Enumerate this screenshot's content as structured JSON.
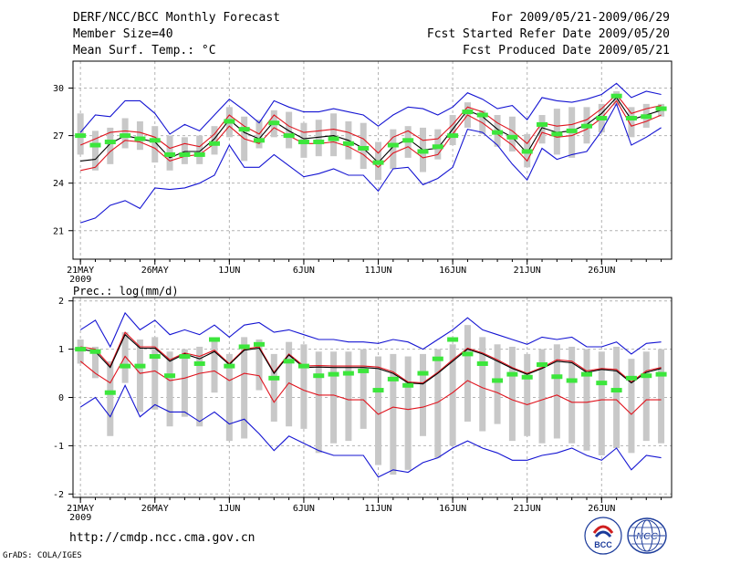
{
  "header": {
    "title": "DERF/NCC/BCC Monthly Forecast",
    "member_size": "Member Size=40",
    "variable": "Mean Surf. Temp.: °C",
    "period": "For 2009/05/21-2009/06/29",
    "fcst_started": "Fcst Started Refer Date 2009/05/20",
    "fcst_produced": "Fcst Produced Date 2009/05/21"
  },
  "footer": {
    "url": "http://cmdp.ncc.cma.gov.cn",
    "credit": "GrADS: COLA/IGES",
    "logo_bcc": "BCC",
    "logo_ncc": "NCC"
  },
  "colors": {
    "grid": "#b4b4b4",
    "box": "#c8c8c8",
    "green": "#3ce63c",
    "red": "#e0141e",
    "blue": "#1414d2",
    "black": "#000000"
  },
  "chart_data": [
    {
      "type": "ensemble-line",
      "title": "Mean Surf. Temp.: °C",
      "xlabel": "",
      "ylabel": "",
      "x_tick_labels": [
        "21MAY",
        "26MAY",
        "1JUN",
        "6JUN",
        "11JUN",
        "16JUN",
        "21JUN",
        "26JUN"
      ],
      "year_label": "2009",
      "x_start": 21,
      "x_end": 60,
      "xlim": [
        20.5,
        60.7
      ],
      "ylim": [
        19.2,
        31.7
      ],
      "y_ticks": [
        21,
        24,
        27,
        30
      ],
      "y_tick_labels": [
        "21",
        "24",
        "27",
        "30"
      ],
      "series": [
        {
          "name": "ensemble-mean",
          "color": "black",
          "values": [
            25.4,
            25.5,
            26.5,
            27.0,
            26.8,
            26.6,
            25.6,
            26.0,
            26.0,
            26.8,
            28.0,
            27.2,
            26.8,
            27.9,
            27.3,
            26.8,
            26.9,
            27.0,
            26.7,
            26.2,
            25.3,
            26.3,
            26.8,
            26.1,
            26.2,
            27.4,
            28.6,
            28.2,
            27.4,
            26.9,
            25.9,
            27.5,
            27.2,
            27.3,
            27.7,
            28.4,
            29.4,
            28.0,
            28.3,
            28.6
          ]
        },
        {
          "name": "upper-red",
          "color": "red",
          "values": [
            26.4,
            26.8,
            27.2,
            27.3,
            27.2,
            26.9,
            26.2,
            26.5,
            26.3,
            27.1,
            28.3,
            27.6,
            27.1,
            28.3,
            27.6,
            27.2,
            27.3,
            27.4,
            27.2,
            26.8,
            25.9,
            26.9,
            27.3,
            26.7,
            26.8,
            27.7,
            28.8,
            28.5,
            27.8,
            27.3,
            26.5,
            27.8,
            27.6,
            27.7,
            28.0,
            28.7,
            29.6,
            28.4,
            28.7,
            28.9
          ]
        },
        {
          "name": "lower-red",
          "color": "red",
          "values": [
            24.8,
            25.0,
            26.0,
            26.7,
            26.6,
            26.2,
            25.4,
            25.7,
            25.8,
            26.5,
            27.6,
            26.8,
            26.5,
            27.5,
            27.0,
            26.5,
            26.5,
            26.6,
            26.3,
            25.8,
            25.0,
            25.9,
            26.3,
            25.6,
            25.8,
            27.1,
            28.3,
            27.8,
            27.1,
            26.4,
            25.4,
            27.2,
            26.9,
            27.0,
            27.4,
            28.1,
            29.2,
            27.6,
            27.9,
            28.3
          ]
        },
        {
          "name": "upper-blue",
          "color": "blue",
          "values": [
            27.2,
            28.3,
            28.2,
            29.2,
            29.2,
            28.4,
            27.1,
            27.7,
            27.3,
            28.3,
            29.3,
            28.6,
            27.8,
            29.2,
            28.8,
            28.5,
            28.5,
            28.7,
            28.5,
            28.3,
            27.6,
            28.3,
            28.8,
            28.7,
            28.3,
            28.8,
            29.7,
            29.3,
            28.7,
            28.9,
            28.0,
            29.4,
            29.2,
            29.1,
            29.3,
            29.6,
            30.3,
            29.4,
            29.8,
            29.6
          ]
        },
        {
          "name": "lower-blue",
          "color": "blue",
          "values": [
            21.5,
            21.8,
            22.6,
            22.9,
            22.4,
            23.7,
            23.6,
            23.7,
            24.0,
            24.5,
            26.4,
            25.0,
            25.0,
            25.8,
            25.1,
            24.4,
            24.6,
            24.9,
            24.5,
            24.5,
            23.5,
            24.9,
            25.0,
            23.9,
            24.3,
            25.0,
            27.4,
            27.2,
            26.4,
            25.2,
            24.2,
            26.2,
            25.5,
            25.8,
            26.0,
            27.3,
            29.0,
            26.4,
            26.9,
            27.5
          ]
        },
        {
          "name": "observed",
          "color": "green",
          "marker": "dash",
          "values": [
            27.0,
            26.4,
            26.6,
            27.0,
            26.8,
            26.7,
            25.8,
            25.8,
            25.8,
            26.5,
            27.9,
            27.4,
            26.7,
            27.8,
            27.0,
            26.6,
            26.6,
            26.8,
            26.5,
            26.2,
            25.3,
            26.4,
            26.7,
            26.0,
            26.3,
            27.0,
            28.5,
            28.3,
            27.2,
            26.9,
            26.0,
            27.7,
            27.1,
            27.3,
            27.6,
            28.1,
            29.5,
            28.1,
            28.2,
            28.7
          ]
        }
      ],
      "box_top": [
        28.4,
        27.3,
        27.5,
        28.1,
        27.9,
        27.6,
        27.0,
        26.9,
        27.0,
        27.6,
        28.8,
        28.2,
        28.0,
        28.6,
        28.5,
        27.8,
        28.0,
        28.4,
        27.9,
        27.8,
        26.6,
        27.4,
        27.6,
        27.5,
        27.4,
        28.3,
        29.1,
        28.6,
        28.3,
        28.2,
        27.1,
        28.3,
        28.7,
        28.8,
        28.8,
        29.0,
        29.8,
        28.8,
        29.0,
        29.0
      ],
      "box_bottom": [
        25.8,
        24.8,
        25.2,
        26.2,
        26.1,
        25.3,
        24.8,
        25.2,
        25.2,
        25.8,
        26.9,
        25.4,
        26.2,
        26.9,
        26.2,
        25.6,
        25.7,
        25.7,
        25.5,
        24.9,
        24.2,
        24.9,
        25.6,
        24.7,
        25.5,
        26.4,
        27.5,
        27.1,
        26.3,
        26.0,
        25.0,
        26.5,
        25.8,
        25.6,
        26.5,
        27.2,
        28.9,
        26.9,
        27.5,
        28.2
      ]
    },
    {
      "type": "ensemble-line",
      "title": "Prec.: log(mm/d)",
      "xlabel": "",
      "ylabel": "",
      "x_tick_labels": [
        "21MAY",
        "26MAY",
        "1JUN",
        "6JUN",
        "11JUN",
        "16JUN",
        "21JUN",
        "26JUN"
      ],
      "year_label": "2009",
      "x_start": 21,
      "x_end": 60,
      "xlim": [
        20.5,
        60.7
      ],
      "ylim": [
        -2.07,
        2.07
      ],
      "y_ticks": [
        -2,
        -1,
        0,
        1,
        2
      ],
      "y_tick_labels": [
        "-2",
        "-1",
        "0",
        "1",
        "2"
      ],
      "series": [
        {
          "name": "ensemble-mean",
          "color": "black",
          "values": [
            1.0,
            0.95,
            0.62,
            1.3,
            1.02,
            1.02,
            0.75,
            0.9,
            0.8,
            0.95,
            0.68,
            0.98,
            1.02,
            0.5,
            0.88,
            0.62,
            0.63,
            0.62,
            0.62,
            0.62,
            0.6,
            0.5,
            0.3,
            0.28,
            0.5,
            0.75,
            1.0,
            0.9,
            0.75,
            0.6,
            0.48,
            0.6,
            0.75,
            0.72,
            0.52,
            0.58,
            0.55,
            0.3,
            0.52,
            0.6
          ]
        },
        {
          "name": "upper-red",
          "color": "red",
          "values": [
            1.05,
            1.0,
            0.65,
            1.35,
            1.05,
            1.05,
            0.78,
            0.92,
            0.85,
            0.98,
            0.7,
            1.0,
            1.05,
            0.52,
            0.9,
            0.65,
            0.66,
            0.65,
            0.65,
            0.65,
            0.63,
            0.53,
            0.32,
            0.3,
            0.52,
            0.78,
            1.02,
            0.92,
            0.78,
            0.62,
            0.5,
            0.62,
            0.78,
            0.75,
            0.55,
            0.6,
            0.58,
            0.32,
            0.55,
            0.62
          ]
        },
        {
          "name": "lower-red",
          "color": "red",
          "values": [
            0.75,
            0.5,
            0.3,
            0.85,
            0.5,
            0.55,
            0.35,
            0.4,
            0.5,
            0.55,
            0.35,
            0.5,
            0.45,
            -0.1,
            0.3,
            0.15,
            0.05,
            0.05,
            -0.05,
            -0.05,
            -0.35,
            -0.2,
            -0.25,
            -0.2,
            -0.1,
            0.1,
            0.35,
            0.2,
            0.1,
            -0.05,
            -0.15,
            -0.05,
            0.05,
            -0.1,
            -0.1,
            -0.05,
            -0.05,
            -0.35,
            -0.05,
            -0.05
          ]
        },
        {
          "name": "upper-blue",
          "color": "blue",
          "values": [
            1.4,
            1.6,
            1.05,
            1.75,
            1.4,
            1.6,
            1.3,
            1.4,
            1.3,
            1.5,
            1.25,
            1.5,
            1.55,
            1.35,
            1.4,
            1.3,
            1.2,
            1.2,
            1.15,
            1.15,
            1.12,
            1.2,
            1.15,
            1.0,
            1.2,
            1.4,
            1.65,
            1.4,
            1.3,
            1.2,
            1.1,
            1.25,
            1.2,
            1.25,
            1.05,
            1.05,
            1.15,
            0.9,
            1.12,
            1.15
          ]
        },
        {
          "name": "lower-blue",
          "color": "blue",
          "values": [
            -0.2,
            0.0,
            -0.4,
            0.25,
            -0.4,
            -0.15,
            -0.3,
            -0.3,
            -0.5,
            -0.3,
            -0.55,
            -0.45,
            -0.75,
            -1.1,
            -0.8,
            -0.95,
            -1.1,
            -1.2,
            -1.2,
            -1.2,
            -1.65,
            -1.5,
            -1.55,
            -1.35,
            -1.25,
            -1.05,
            -0.9,
            -1.05,
            -1.15,
            -1.3,
            -1.3,
            -1.2,
            -1.15,
            -1.05,
            -1.2,
            -1.3,
            -1.05,
            -1.5,
            -1.2,
            -1.25
          ]
        },
        {
          "name": "observed",
          "color": "green",
          "marker": "dash",
          "values": [
            1.0,
            0.95,
            0.1,
            0.65,
            0.65,
            0.85,
            0.45,
            0.85,
            0.7,
            1.2,
            0.65,
            1.05,
            1.1,
            0.4,
            0.75,
            0.65,
            0.45,
            0.48,
            0.5,
            0.55,
            0.15,
            0.38,
            0.25,
            0.5,
            0.8,
            1.2,
            0.9,
            0.7,
            0.35,
            0.48,
            0.42,
            0.68,
            0.43,
            0.35,
            0.48,
            0.3,
            0.15,
            0.4,
            0.45,
            0.48
          ]
        }
      ],
      "box_top": [
        1.2,
        1.05,
        0.75,
        1.35,
        1.2,
        1.25,
        0.95,
        1.0,
        1.05,
        1.2,
        0.9,
        1.25,
        1.2,
        0.9,
        1.15,
        1.1,
        0.95,
        0.95,
        0.95,
        1.0,
        0.85,
        0.9,
        0.85,
        0.9,
        1.0,
        1.1,
        1.5,
        1.25,
        1.1,
        1.05,
        0.9,
        1.0,
        1.1,
        1.05,
        1.0,
        0.95,
        1.05,
        0.8,
        0.95,
        1.0
      ],
      "box_bottom": [
        0.7,
        0.4,
        -0.8,
        0.3,
        -0.3,
        -0.25,
        -0.6,
        -0.4,
        -0.6,
        0.1,
        -0.9,
        -0.85,
        0.15,
        -0.5,
        -0.6,
        -0.65,
        -1.15,
        -0.95,
        -0.9,
        -0.65,
        -1.4,
        -1.6,
        -1.5,
        -0.8,
        -1.25,
        -1.0,
        -0.5,
        -0.7,
        -0.55,
        -0.9,
        -0.8,
        -0.95,
        -0.85,
        -0.95,
        -1.1,
        -1.2,
        -1.05,
        -1.15,
        -0.9,
        -0.95
      ]
    }
  ]
}
